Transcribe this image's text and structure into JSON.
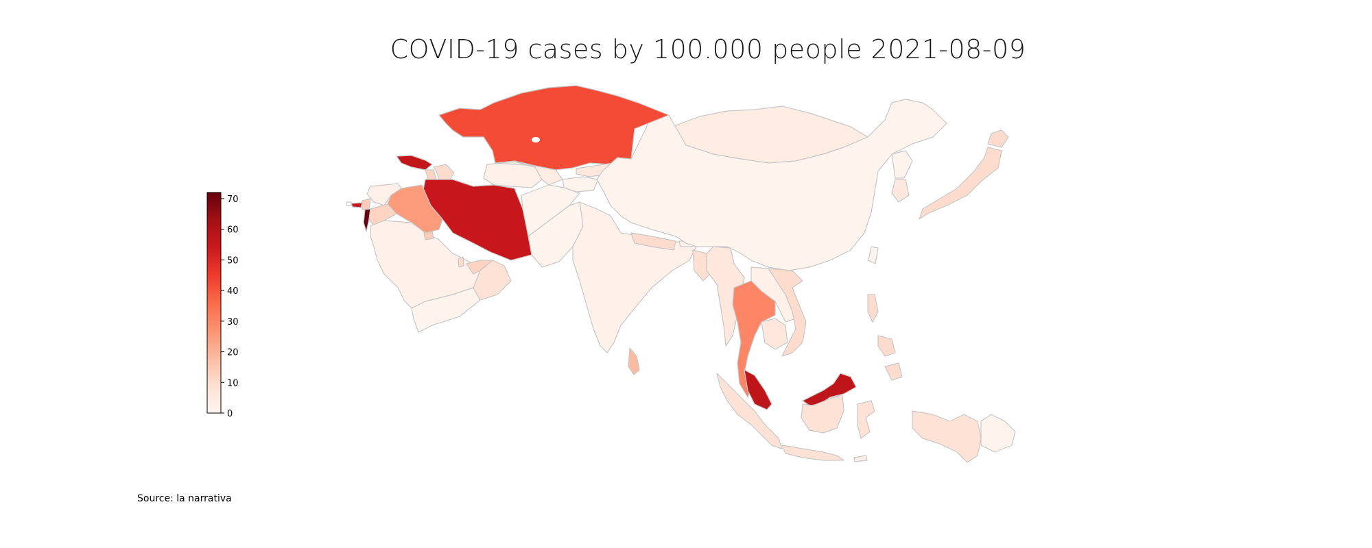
{
  "title": "COVID-19 cases by 100.000 people 2021-08-09",
  "source": "Source: la narrativa",
  "colorscale": {
    "name": "Reds",
    "min": 0,
    "max": 72,
    "ticks": [
      0,
      10,
      20,
      30,
      40,
      50,
      60,
      70
    ],
    "stops": [
      "#fff5f0",
      "#fee0d2",
      "#fcbba1",
      "#fc9272",
      "#fb6a4a",
      "#ef3b2c",
      "#cb181d",
      "#a50f15",
      "#67000d"
    ]
  },
  "chart_data": {
    "type": "choropleth",
    "region": "Asia",
    "metric": "COVID-19 cases by 100.000 people",
    "date": "2021-08-09",
    "values": {
      "Kazakhstan": 42,
      "Georgia": 56,
      "Armenia": 12,
      "Azerbaijan": 10,
      "Turkmenistan": 2,
      "Uzbekistan": 4,
      "Kyrgyzstan": 6,
      "Tajikistan": 1,
      "Iran": 55,
      "Iraq": 25,
      "Syria": 2,
      "Lebanon": 14,
      "Israel": 72,
      "Jordan": 12,
      "Cyprus": 55,
      "Saudi Arabia": 2,
      "Yemen": 1,
      "Oman": 8,
      "United Arab Emirates": 12,
      "Kuwait": 14,
      "Qatar": 10,
      "Afghanistan": 1,
      "Pakistan": 1,
      "India": 2,
      "Nepal": 10,
      "Bangladesh": 9,
      "Bhutan": 2,
      "Sri Lanka": 18,
      "Mongolia": 4,
      "China": 1,
      "North Korea": 1,
      "South Korea": 6,
      "Japan": 10,
      "Taiwan": 1,
      "Myanmar": 6,
      "Laos": 2,
      "Vietnam": 10,
      "Thailand": 30,
      "Cambodia": 6,
      "Malaysia": 57,
      "Indonesia": 8,
      "Philippines": 10,
      "Papua New Guinea": 1,
      "Timor-Leste": 3
    }
  }
}
